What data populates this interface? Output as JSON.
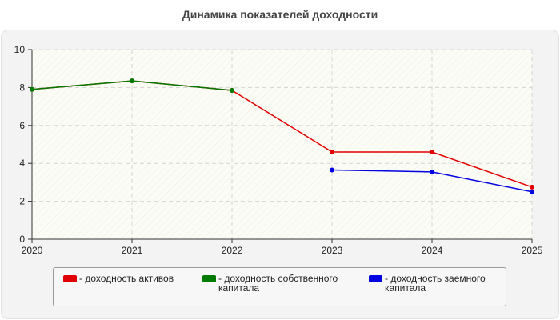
{
  "chart_data": {
    "type": "line",
    "title": "Динамика показателей доходности",
    "x": [
      "2020",
      "2021",
      "2022",
      "2023",
      "2024",
      "2025"
    ],
    "ylim": [
      0,
      10
    ],
    "yticks": [
      0,
      2,
      4,
      6,
      8,
      10
    ],
    "grid": true,
    "legend_position": "bottom",
    "series": [
      {
        "name": "- доходность активов",
        "color": "#e00000",
        "values": [
          7.9,
          8.35,
          7.85,
          4.6,
          4.6,
          2.75
        ]
      },
      {
        "name": "- доходность собственного капитала",
        "color": "#007a00",
        "values": [
          7.9,
          8.35,
          7.85,
          null,
          null,
          null
        ]
      },
      {
        "name": "- доходность заемного капитала",
        "color": "#0000e0",
        "values": [
          null,
          null,
          null,
          3.65,
          3.55,
          2.5
        ]
      }
    ]
  }
}
